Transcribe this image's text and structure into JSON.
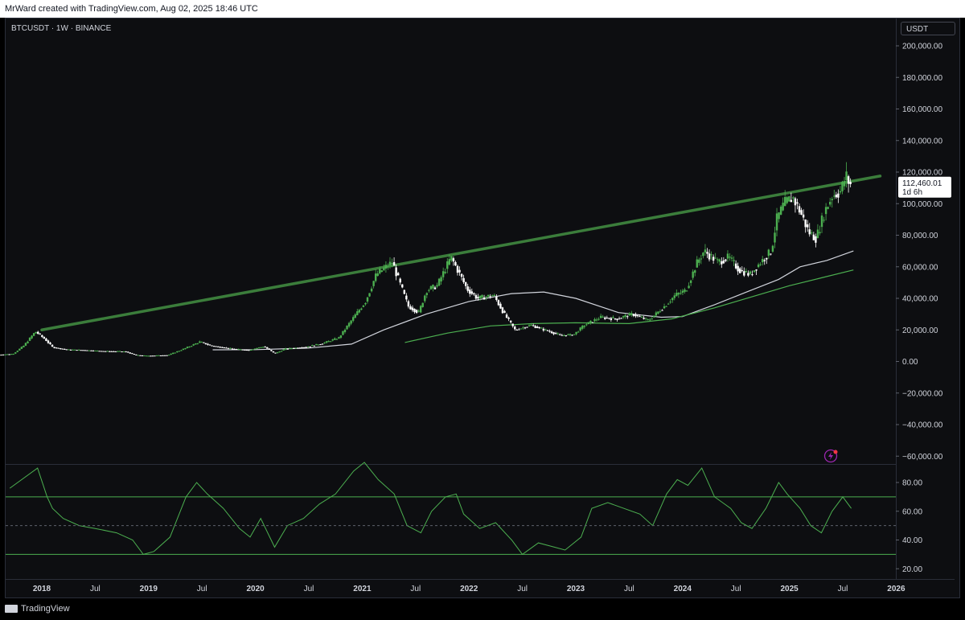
{
  "header": {
    "text": "MrWard created with TradingView.com, Aug 02, 2025 18:46 UTC"
  },
  "symbol_line": "BTCUSDT · 1W · BINANCE",
  "currency": "USDT",
  "price_badge": {
    "price": "112,460.01",
    "countdown": "1d 6h"
  },
  "footer": {
    "brand": "TradingView"
  },
  "colors": {
    "up": "#4caf50",
    "down": "#ffffff",
    "trendline": "#3b7d3b",
    "ma_white": "#d1d4dc",
    "ma_green": "#4caf50",
    "rsi": "#4caf50"
  },
  "chart_data": [
    {
      "type": "candlestick",
      "ylim": [
        -60000,
        200000
      ],
      "y_ticks": [
        "200,000.00",
        "180,000.00",
        "160,000.00",
        "140,000.00",
        "120,000.00",
        "100,000.00",
        "80,000.00",
        "60,000.00",
        "40,000.00",
        "20,000.00",
        "0.00",
        "−20,000.00",
        "−40,000.00",
        "−60,000.00"
      ],
      "x_ticks": [
        {
          "label": "2018",
          "t": 2018.0,
          "bold": true
        },
        {
          "label": "Jul",
          "t": 2018.5
        },
        {
          "label": "2019",
          "t": 2019.0,
          "bold": true
        },
        {
          "label": "Jul",
          "t": 2019.5
        },
        {
          "label": "2020",
          "t": 2020.0,
          "bold": true
        },
        {
          "label": "Jul",
          "t": 2020.5
        },
        {
          "label": "2021",
          "t": 2021.0,
          "bold": true
        },
        {
          "label": "Jul",
          "t": 2021.5
        },
        {
          "label": "2022",
          "t": 2022.0,
          "bold": true
        },
        {
          "label": "Jul",
          "t": 2022.5
        },
        {
          "label": "2023",
          "t": 2023.0,
          "bold": true
        },
        {
          "label": "Jul",
          "t": 2023.5
        },
        {
          "label": "2024",
          "t": 2024.0,
          "bold": true
        },
        {
          "label": "Jul",
          "t": 2024.5
        },
        {
          "label": "2025",
          "t": 2025.0,
          "bold": true
        },
        {
          "label": "Jul",
          "t": 2025.5
        },
        {
          "label": "2026",
          "t": 2026.0,
          "bold": true
        }
      ],
      "price_path": [
        [
          2017.6,
          4200
        ],
        [
          2017.75,
          4800
        ],
        [
          2017.85,
          10000
        ],
        [
          2017.96,
          19000
        ],
        [
          2018.05,
          14000
        ],
        [
          2018.12,
          9000
        ],
        [
          2018.25,
          7500
        ],
        [
          2018.4,
          7200
        ],
        [
          2018.6,
          6500
        ],
        [
          2018.8,
          6300
        ],
        [
          2018.9,
          4000
        ],
        [
          2019.0,
          3600
        ],
        [
          2019.2,
          4000
        ],
        [
          2019.35,
          8000
        ],
        [
          2019.5,
          12500
        ],
        [
          2019.6,
          10000
        ],
        [
          2019.8,
          8000
        ],
        [
          2019.95,
          7200
        ],
        [
          2020.1,
          9500
        ],
        [
          2020.2,
          5000
        ],
        [
          2020.3,
          8000
        ],
        [
          2020.5,
          9300
        ],
        [
          2020.65,
          11500
        ],
        [
          2020.8,
          15000
        ],
        [
          2020.95,
          29000
        ],
        [
          2021.05,
          38000
        ],
        [
          2021.15,
          55000
        ],
        [
          2021.3,
          63000
        ],
        [
          2021.38,
          48000
        ],
        [
          2021.45,
          35000
        ],
        [
          2021.55,
          31000
        ],
        [
          2021.62,
          45000
        ],
        [
          2021.72,
          48000
        ],
        [
          2021.85,
          66000
        ],
        [
          2021.92,
          57000
        ],
        [
          2022.0,
          46000
        ],
        [
          2022.1,
          40000
        ],
        [
          2022.25,
          42000
        ],
        [
          2022.35,
          30000
        ],
        [
          2022.45,
          20000
        ],
        [
          2022.6,
          23000
        ],
        [
          2022.75,
          19500
        ],
        [
          2022.88,
          16500
        ],
        [
          2023.0,
          17000
        ],
        [
          2023.1,
          23000
        ],
        [
          2023.25,
          28000
        ],
        [
          2023.4,
          27000
        ],
        [
          2023.55,
          30000
        ],
        [
          2023.7,
          26000
        ],
        [
          2023.85,
          35000
        ],
        [
          2023.95,
          42000
        ],
        [
          2024.05,
          45000
        ],
        [
          2024.15,
          62000
        ],
        [
          2024.22,
          70000
        ],
        [
          2024.35,
          63000
        ],
        [
          2024.45,
          66000
        ],
        [
          2024.55,
          58000
        ],
        [
          2024.65,
          55000
        ],
        [
          2024.75,
          63000
        ],
        [
          2024.85,
          70000
        ],
        [
          2024.9,
          90000
        ],
        [
          2024.97,
          100000
        ],
        [
          2025.05,
          104000
        ],
        [
          2025.12,
          95000
        ],
        [
          2025.2,
          82000
        ],
        [
          2025.27,
          78000
        ],
        [
          2025.35,
          95000
        ],
        [
          2025.42,
          105000
        ],
        [
          2025.5,
          108000
        ],
        [
          2025.55,
          118000
        ],
        [
          2025.58,
          112460
        ]
      ],
      "ma_white": [
        [
          2019.6,
          7400
        ],
        [
          2020.0,
          7500
        ],
        [
          2020.5,
          8500
        ],
        [
          2020.9,
          11000
        ],
        [
          2021.2,
          20000
        ],
        [
          2021.6,
          30000
        ],
        [
          2022.0,
          38000
        ],
        [
          2022.4,
          43000
        ],
        [
          2022.7,
          44000
        ],
        [
          2023.0,
          40000
        ],
        [
          2023.4,
          31000
        ],
        [
          2023.8,
          28000
        ],
        [
          2024.0,
          28500
        ],
        [
          2024.3,
          36000
        ],
        [
          2024.6,
          44000
        ],
        [
          2024.9,
          52000
        ],
        [
          2025.1,
          60000
        ],
        [
          2025.35,
          64000
        ],
        [
          2025.6,
          70000
        ]
      ],
      "ma_green": [
        [
          2021.4,
          12000
        ],
        [
          2021.8,
          18000
        ],
        [
          2022.2,
          22500
        ],
        [
          2022.6,
          24000
        ],
        [
          2023.0,
          24500
        ],
        [
          2023.5,
          24000
        ],
        [
          2023.9,
          27000
        ],
        [
          2024.3,
          34000
        ],
        [
          2024.7,
          42000
        ],
        [
          2025.0,
          48000
        ],
        [
          2025.3,
          53000
        ],
        [
          2025.6,
          58000
        ]
      ],
      "trendline": [
        [
          2018.0,
          20000
        ],
        [
          2025.85,
          117500
        ]
      ]
    },
    {
      "type": "line",
      "ylim": [
        15,
        95
      ],
      "y_ticks": [
        "80.00",
        "60.00",
        "40.00",
        "20.00"
      ],
      "bands": [
        70,
        50,
        30
      ],
      "rsi": [
        [
          2017.7,
          76
        ],
        [
          2017.96,
          90
        ],
        [
          2018.05,
          70
        ],
        [
          2018.1,
          62
        ],
        [
          2018.2,
          55
        ],
        [
          2018.35,
          50
        ],
        [
          2018.5,
          48
        ],
        [
          2018.7,
          45
        ],
        [
          2018.85,
          40
        ],
        [
          2018.95,
          30
        ],
        [
          2019.05,
          32
        ],
        [
          2019.2,
          42
        ],
        [
          2019.35,
          70
        ],
        [
          2019.45,
          80
        ],
        [
          2019.55,
          72
        ],
        [
          2019.7,
          62
        ],
        [
          2019.85,
          48
        ],
        [
          2019.95,
          42
        ],
        [
          2020.05,
          55
        ],
        [
          2020.18,
          35
        ],
        [
          2020.3,
          50
        ],
        [
          2020.45,
          55
        ],
        [
          2020.6,
          65
        ],
        [
          2020.75,
          72
        ],
        [
          2020.92,
          88
        ],
        [
          2021.02,
          94
        ],
        [
          2021.15,
          82
        ],
        [
          2021.3,
          72
        ],
        [
          2021.42,
          50
        ],
        [
          2021.55,
          45
        ],
        [
          2021.65,
          60
        ],
        [
          2021.78,
          70
        ],
        [
          2021.88,
          72
        ],
        [
          2021.95,
          58
        ],
        [
          2022.1,
          48
        ],
        [
          2022.25,
          52
        ],
        [
          2022.4,
          40
        ],
        [
          2022.5,
          30
        ],
        [
          2022.65,
          38
        ],
        [
          2022.8,
          35
        ],
        [
          2022.9,
          33
        ],
        [
          2023.05,
          42
        ],
        [
          2023.15,
          62
        ],
        [
          2023.3,
          66
        ],
        [
          2023.45,
          62
        ],
        [
          2023.6,
          58
        ],
        [
          2023.72,
          50
        ],
        [
          2023.85,
          72
        ],
        [
          2023.95,
          82
        ],
        [
          2024.05,
          78
        ],
        [
          2024.18,
          90
        ],
        [
          2024.3,
          70
        ],
        [
          2024.45,
          62
        ],
        [
          2024.55,
          52
        ],
        [
          2024.65,
          48
        ],
        [
          2024.78,
          62
        ],
        [
          2024.9,
          80
        ],
        [
          2024.98,
          72
        ],
        [
          2025.1,
          62
        ],
        [
          2025.2,
          50
        ],
        [
          2025.3,
          45
        ],
        [
          2025.4,
          60
        ],
        [
          2025.5,
          70
        ],
        [
          2025.58,
          62
        ]
      ]
    }
  ]
}
